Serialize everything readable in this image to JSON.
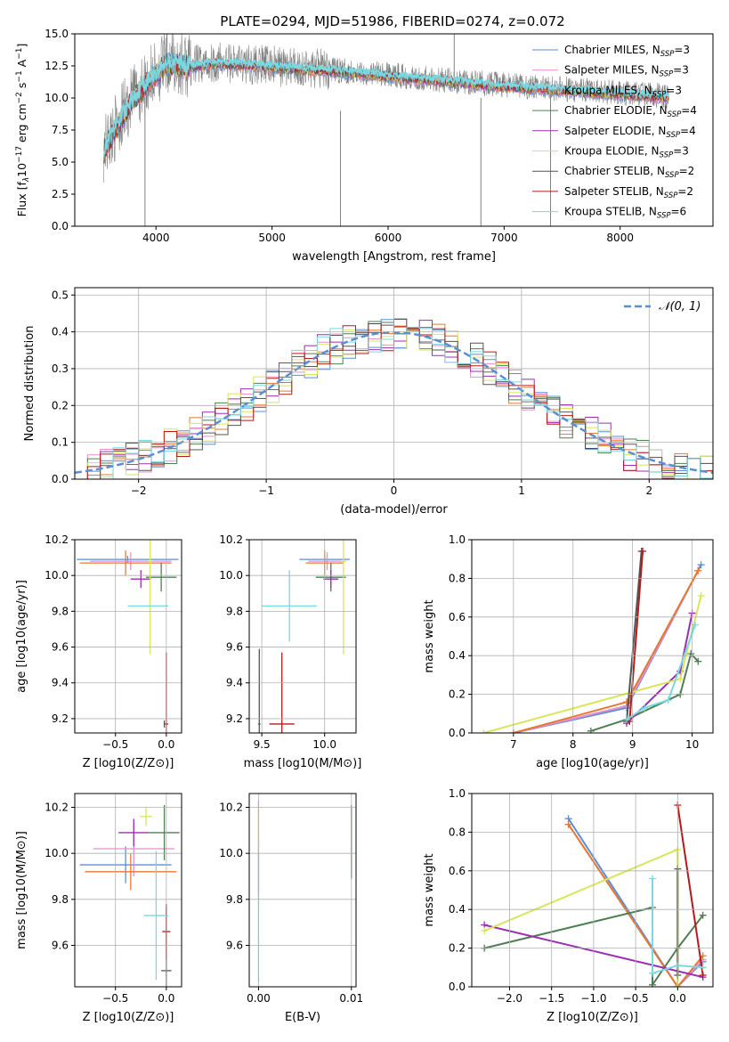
{
  "figure": {
    "title": "PLATE=0294, MJD=51986, FIBERID=0274, z=0.072"
  },
  "colors": {
    "chabrier_miles": "#5a8fd8",
    "salpeter_miles": "#e58fcf",
    "kroupa_miles": "#e7782f",
    "chabrier_elodie": "#4f7f53",
    "salpeter_elodie": "#9c2fb0",
    "kroupa_elodie": "#d9e55a",
    "chabrier_stelib": "#555555",
    "salpeter_stelib": "#b51a1a",
    "kroupa_stelib": "#7ad8e0",
    "data": "#808080",
    "gaussian": "#5a8fd8"
  },
  "chart_data": [
    {
      "id": "spectrum",
      "type": "line",
      "title": "PLATE=0294, MJD=51986, FIBERID=0274, z=0.072",
      "xlabel": "wavelength [Angstrom, rest frame]",
      "ylabel": "Flux [f_λ 10^-17 erg cm^-2 s^-1 A^-1]",
      "xlim": [
        3300,
        8800
      ],
      "ylim": [
        0,
        15
      ],
      "xticks": [
        "4000",
        "5000",
        "6000",
        "7000",
        "8000"
      ],
      "yticks": [
        "0.0",
        "2.5",
        "5.0",
        "7.5",
        "10.0",
        "12.5",
        "15.0"
      ],
      "legend_position": "top-right",
      "legend": [
        {
          "label": "Chabrier MILES, N_SSP=3",
          "color": "#5a8fd8"
        },
        {
          "label": "Salpeter MILES, N_SSP=3",
          "color": "#e58fcf"
        },
        {
          "label": "Kroupa MILES, N_SSP=3",
          "color": "#e7782f"
        },
        {
          "label": "Chabrier ELODIE, N_SSP=4",
          "color": "#4f7f53"
        },
        {
          "label": "Salpeter ELODIE, N_SSP=4",
          "color": "#9c2fb0"
        },
        {
          "label": "Kroupa ELODIE, N_SSP=3",
          "color": "#d9e55a"
        },
        {
          "label": "Chabrier STELIB, N_SSP=2",
          "color": "#555555"
        },
        {
          "label": "Salpeter STELIB, N_SSP=2",
          "color": "#b51a1a"
        },
        {
          "label": "Kroupa STELIB, N_SSP=6",
          "color": "#7ad8e0"
        }
      ],
      "model_envelope": {
        "x": [
          3550,
          3700,
          3800,
          3900,
          4000,
          4100,
          4300,
          4500,
          4700,
          5000,
          5500,
          6000,
          6500,
          7000,
          7500,
          8000,
          8500
        ],
        "y": [
          6.0,
          8.5,
          10.0,
          11.0,
          12.0,
          12.8,
          12.5,
          12.8,
          12.7,
          12.5,
          12.2,
          11.8,
          11.4,
          11.0,
          10.7,
          10.4,
          10.1
        ]
      },
      "spikes": [
        {
          "x": 3905,
          "y0": 0,
          "y1": 10
        },
        {
          "x": 5590,
          "y0": 0,
          "y1": 9
        },
        {
          "x": 6800,
          "y0": 0,
          "y1": 10
        },
        {
          "x": 7400,
          "y0": 0,
          "y1": 10
        },
        {
          "x": 6570,
          "y0": 11,
          "y1": 15
        }
      ]
    },
    {
      "id": "residuals",
      "type": "bar",
      "xlabel": "(data-model)/error",
      "ylabel": "Normed distribution",
      "xlim": [
        -2.5,
        2.5
      ],
      "ylim": [
        0,
        0.52
      ],
      "xticks": [
        "−2",
        "−1",
        "0",
        "1",
        "2"
      ],
      "yticks": [
        "0.0",
        "0.1",
        "0.2",
        "0.3",
        "0.4",
        "0.5"
      ],
      "legend": [
        {
          "label": "𝒩(0, 1)",
          "style": "dashed",
          "color": "#5a8fd8"
        }
      ],
      "legend_position": "top-right",
      "bin_width": 0.1
    },
    {
      "id": "age_vs_Z",
      "type": "scatter",
      "xlabel": "Z [log10(Z/Z⊙)]",
      "ylabel": "age [log10(age/yr)]",
      "xlim": [
        -0.9,
        0.15
      ],
      "ylim": [
        9.12,
        10.2
      ],
      "xticks": [
        "−0.5",
        "0.0"
      ],
      "yticks": [
        "9.2",
        "9.4",
        "9.6",
        "9.8",
        "10.0",
        "10.2"
      ],
      "points": [
        {
          "x": -0.38,
          "y": 10.09,
          "xerr": 0.5,
          "yerr": 0.02,
          "color": "#5a8fd8"
        },
        {
          "x": -0.35,
          "y": 10.08,
          "xerr": 0.4,
          "yerr": 0.05,
          "color": "#e58fcf"
        },
        {
          "x": -0.4,
          "y": 10.07,
          "xerr": 0.45,
          "yerr": 0.07,
          "color": "#e7782f"
        },
        {
          "x": -0.05,
          "y": 9.99,
          "xerr": 0.15,
          "yerr": 0.08,
          "color": "#4f7f53"
        },
        {
          "x": -0.25,
          "y": 9.98,
          "xerr": 0.1,
          "yerr": 0.05,
          "color": "#9c2fb0"
        },
        {
          "x": -0.16,
          "y": 10.08,
          "xerr": 0.02,
          "yerr": 0.52,
          "color": "#d9e55a"
        },
        {
          "x": -0.02,
          "y": 9.17,
          "xerr": 0.0,
          "yerr": 0.02,
          "color": "#555555"
        },
        {
          "x": 0.0,
          "y": 9.17,
          "xerr": 0.02,
          "yerr": 0.4,
          "color": "#b51a1a"
        },
        {
          "x": -0.18,
          "y": 9.83,
          "xerr": 0.2,
          "yerr": 0.0,
          "color": "#7ad8e0"
        }
      ]
    },
    {
      "id": "age_vs_mass",
      "type": "scatter",
      "xlabel": "mass [log10(M/M⊙)]",
      "ylabel": "",
      "xlim": [
        9.4,
        10.25
      ],
      "ylim": [
        9.12,
        10.2
      ],
      "xticks": [
        "9.5",
        "10.0"
      ],
      "yticks": [
        "9.2",
        "9.4",
        "9.6",
        "9.8",
        "10.0",
        "10.2"
      ],
      "points": [
        {
          "x": 10.0,
          "y": 10.09,
          "xerr": 0.2,
          "yerr": 0.02,
          "color": "#5a8fd8"
        },
        {
          "x": 10.02,
          "y": 10.08,
          "xerr": 0.15,
          "yerr": 0.05,
          "color": "#e58fcf"
        },
        {
          "x": 10.0,
          "y": 10.07,
          "xerr": 0.15,
          "yerr": 0.07,
          "color": "#e7782f"
        },
        {
          "x": 10.05,
          "y": 9.99,
          "xerr": 0.12,
          "yerr": 0.08,
          "color": "#4f7f53"
        },
        {
          "x": 10.05,
          "y": 9.98,
          "xerr": 0.06,
          "yerr": 0.05,
          "color": "#9c2fb0"
        },
        {
          "x": 10.15,
          "y": 10.08,
          "xerr": 0.02,
          "yerr": 0.52,
          "color": "#d9e55a"
        },
        {
          "x": 9.48,
          "y": 9.17,
          "xerr": 0.01,
          "yerr": 0.42,
          "color": "#555555"
        },
        {
          "x": 9.66,
          "y": 9.17,
          "xerr": 0.1,
          "yerr": 0.4,
          "color": "#b51a1a"
        },
        {
          "x": 9.72,
          "y": 9.83,
          "xerr": 0.22,
          "yerr": 0.2,
          "color": "#7ad8e0"
        }
      ]
    },
    {
      "id": "mass_weight_vs_age",
      "type": "line",
      "xlabel": "age [log10(age/yr)]",
      "ylabel": "mass weight",
      "xlim": [
        6.3,
        10.35
      ],
      "ylim": [
        0,
        1
      ],
      "xticks": [
        "7",
        "8",
        "9",
        "10"
      ],
      "yticks": [
        "0.0",
        "0.2",
        "0.4",
        "0.6",
        "0.8",
        "1.0"
      ],
      "series": [
        {
          "color": "#5a8fd8",
          "x": [
            7.0,
            8.9,
            10.15
          ],
          "y": [
            0.0,
            0.13,
            0.87
          ]
        },
        {
          "color": "#e58fcf",
          "x": [
            7.0,
            8.9,
            10.1
          ],
          "y": [
            0.0,
            0.14,
            0.84
          ]
        },
        {
          "color": "#e7782f",
          "x": [
            7.0,
            8.9,
            10.1
          ],
          "y": [
            0.0,
            0.16,
            0.84
          ]
        },
        {
          "color": "#4f7f53",
          "x": [
            8.3,
            8.9,
            9.8,
            9.98,
            10.1
          ],
          "y": [
            0.01,
            0.07,
            0.2,
            0.41,
            0.37
          ]
        },
        {
          "color": "#9c2fb0",
          "x": [
            8.9,
            9.8,
            10.0
          ],
          "y": [
            0.05,
            0.32,
            0.62
          ]
        },
        {
          "color": "#d9e55a",
          "x": [
            6.5,
            9.8,
            10.15
          ],
          "y": [
            0.0,
            0.28,
            0.71
          ]
        },
        {
          "color": "#555555",
          "x": [
            8.9,
            9.15
          ],
          "y": [
            0.06,
            0.94
          ]
        },
        {
          "color": "#b51a1a",
          "x": [
            8.95,
            9.17
          ],
          "y": [
            0.06,
            0.94
          ]
        },
        {
          "color": "#7ad8e0",
          "x": [
            8.9,
            9.2,
            9.6,
            10.05
          ],
          "y": [
            0.07,
            0.13,
            0.17,
            0.56
          ]
        }
      ]
    },
    {
      "id": "mass_vs_Z",
      "type": "scatter",
      "xlabel": "Z [log10(Z/Z⊙)]",
      "ylabel": "mass [log10(M/M⊙)]",
      "xlim": [
        -0.9,
        0.15
      ],
      "ylim": [
        9.42,
        10.26
      ],
      "xticks": [
        "−0.5",
        "0.0"
      ],
      "yticks": [
        "9.6",
        "9.8",
        "10.0",
        "10.2"
      ],
      "points": [
        {
          "x": -0.4,
          "y": 9.95,
          "xerr": 0.45,
          "yerr": 0.08,
          "color": "#5a8fd8"
        },
        {
          "x": -0.32,
          "y": 10.02,
          "xerr": 0.4,
          "yerr": 0.12,
          "color": "#e58fcf"
        },
        {
          "x": -0.35,
          "y": 9.92,
          "xerr": 0.45,
          "yerr": 0.08,
          "color": "#e7782f"
        },
        {
          "x": -0.02,
          "y": 10.09,
          "xerr": 0.15,
          "yerr": 0.12,
          "color": "#4f7f53"
        },
        {
          "x": -0.32,
          "y": 10.09,
          "xerr": 0.15,
          "yerr": 0.06,
          "color": "#9c2fb0"
        },
        {
          "x": -0.2,
          "y": 10.16,
          "xerr": 0.06,
          "yerr": 0.04,
          "color": "#d9e55a"
        },
        {
          "x": 0.0,
          "y": 9.49,
          "xerr": 0.05,
          "yerr": 0.28,
          "color": "#555555"
        },
        {
          "x": 0.0,
          "y": 9.66,
          "xerr": 0.04,
          "yerr": 0.12,
          "color": "#b51a1a"
        },
        {
          "x": -0.1,
          "y": 9.73,
          "xerr": 0.12,
          "yerr": 0.28,
          "color": "#7ad8e0"
        }
      ]
    },
    {
      "id": "mass_vs_ebv",
      "type": "scatter",
      "xlabel": "E(B-V)",
      "ylabel": "",
      "xlim": [
        -0.001,
        0.0105
      ],
      "ylim": [
        9.42,
        10.26
      ],
      "xticks": [
        "0.00",
        "0.01"
      ],
      "yticks": [
        "9.6",
        "9.8",
        "10.0",
        "10.2"
      ],
      "points": [
        {
          "x": 0.0,
          "y": 10.15,
          "xerr": 0.0,
          "yerr": 0.08,
          "color": "#e58fcf"
        },
        {
          "x": 0.0,
          "y": 9.95,
          "xerr": 0.0,
          "yerr": 0.12,
          "color": "#e7782f"
        },
        {
          "x": 0.0,
          "y": 10.0,
          "xerr": 0.0,
          "yerr": 0.2,
          "color": "#d9e55a"
        },
        {
          "x": 0.0,
          "y": 9.72,
          "xerr": 0.0,
          "yerr": 0.28,
          "color": "#7ad8e0"
        },
        {
          "x": 0.01,
          "y": 10.05,
          "xerr": 0.0,
          "yerr": 0.16,
          "color": "#4f7f53"
        }
      ]
    },
    {
      "id": "mass_weight_vs_Z",
      "type": "line",
      "xlabel": "Z [log10(Z/Z⊙)]",
      "ylabel": "mass weight",
      "xlim": [
        -2.45,
        0.42
      ],
      "ylim": [
        0,
        1
      ],
      "xticks": [
        "−2.0",
        "−1.5",
        "−1.0",
        "−0.5",
        "0.0"
      ],
      "yticks": [
        "0.0",
        "0.2",
        "0.4",
        "0.6",
        "0.8",
        "1.0"
      ],
      "series": [
        {
          "color": "#5a8fd8",
          "x": [
            -1.3,
            0.0,
            0.3
          ],
          "y": [
            0.87,
            0.0,
            0.13
          ]
        },
        {
          "color": "#e58fcf",
          "x": [
            -1.3,
            0.0,
            0.3
          ],
          "y": [
            0.84,
            0.0,
            0.14
          ]
        },
        {
          "color": "#e7782f",
          "x": [
            -1.3,
            0.0,
            0.3
          ],
          "y": [
            0.84,
            0.0,
            0.16
          ]
        },
        {
          "color": "#4f7f53",
          "x": [
            -2.3,
            -0.3,
            -0.3,
            0.0,
            0.3
          ],
          "y": [
            0.2,
            0.41,
            0.01,
            0.2,
            0.37
          ]
        },
        {
          "color": "#9c2fb0",
          "x": [
            -2.3,
            0.3
          ],
          "y": [
            0.32,
            0.05
          ]
        },
        {
          "color": "#d9e55a",
          "x": [
            -2.3,
            0.0,
            0.0
          ],
          "y": [
            0.29,
            0.71,
            0.0
          ]
        },
        {
          "color": "#555555",
          "x": [
            0.0,
            0.0
          ],
          "y": [
            0.61,
            0.06
          ]
        },
        {
          "color": "#b51a1a",
          "x": [
            0.0,
            0.3
          ],
          "y": [
            0.94,
            0.06
          ]
        },
        {
          "color": "#7ad8e0",
          "x": [
            -0.3,
            -0.3,
            0.0,
            0.3
          ],
          "y": [
            0.56,
            0.07,
            0.11,
            0.1
          ]
        }
      ]
    }
  ]
}
